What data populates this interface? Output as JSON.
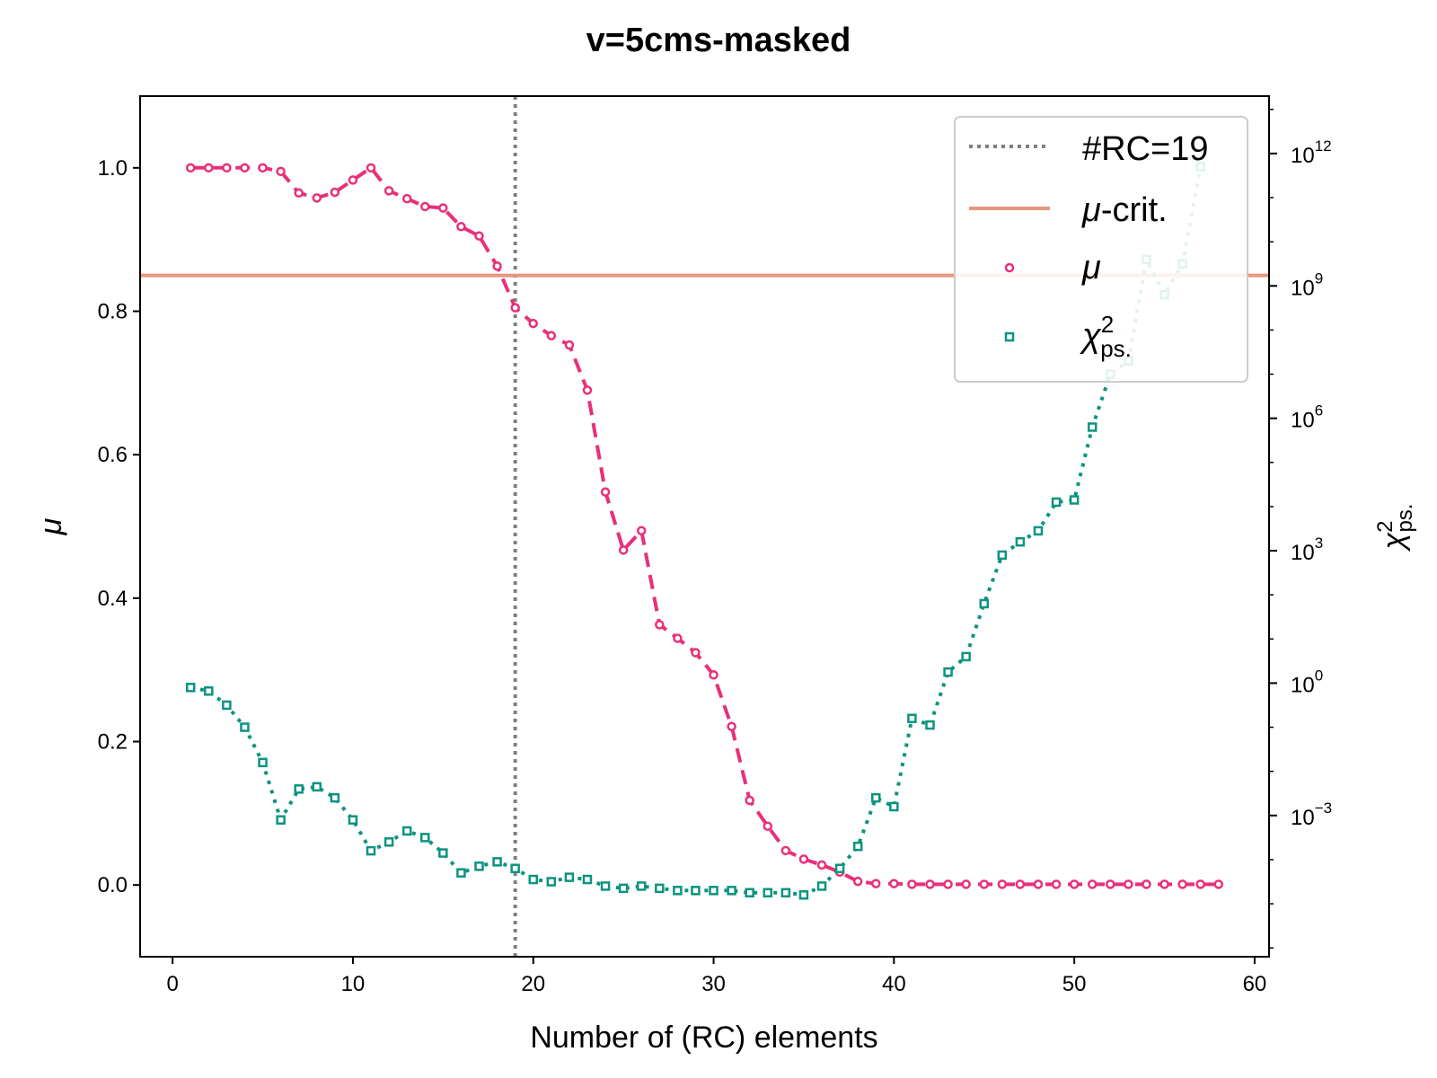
{
  "chart_data": {
    "type": "line",
    "title": "v=5cms-masked",
    "xlabel": "Number of (RC) elements",
    "ylabel": "μ",
    "y2label": "χ²ps.",
    "xlim": [
      -1.8,
      60.8
    ],
    "ylim": [
      -0.1,
      1.1
    ],
    "y2_scale": "log",
    "y2_lim_log10": [
      -6.2,
      13.3
    ],
    "x_ticks": [
      0,
      10,
      20,
      30,
      40,
      50,
      60
    ],
    "y_ticks": [
      0.0,
      0.2,
      0.4,
      0.6,
      0.8,
      1.0
    ],
    "y2_ticks_log10": [
      -3,
      0,
      3,
      6,
      9,
      12
    ],
    "grid": false,
    "legend_position": "top-right",
    "legend": [
      {
        "label": "#RC=19",
        "style": "dotted-line",
        "color": "#7f7f7f"
      },
      {
        "label": "μ-crit.",
        "style": "solid-line",
        "color": "#e8967f"
      },
      {
        "label": "μ",
        "style": "circle-marker",
        "color": "#e8307a"
      },
      {
        "label": "χ²ps.",
        "style": "square-marker",
        "color": "#0d9480"
      }
    ],
    "vertical_line": {
      "x": 19,
      "label": "#RC=19"
    },
    "horizontal_line": {
      "y": 0.85,
      "label": "μ-crit."
    },
    "series": [
      {
        "name": "μ",
        "axis": "left",
        "color": "#e8307a",
        "x": [
          1,
          2,
          3,
          4,
          5,
          6,
          7,
          8,
          9,
          10,
          11,
          12,
          13,
          14,
          15,
          16,
          17,
          18,
          19,
          20,
          21,
          22,
          23,
          24,
          25,
          26,
          27,
          28,
          29,
          30,
          31,
          32,
          33,
          34,
          35,
          36,
          37,
          38,
          39,
          40,
          41,
          42,
          43,
          44,
          45,
          46,
          47,
          48,
          49,
          50,
          51,
          52,
          53,
          54,
          55,
          56,
          57,
          58
        ],
        "y": [
          1.0,
          1.0,
          1.0,
          1.0,
          1.0,
          0.995,
          0.965,
          0.958,
          0.966,
          0.983,
          1.0,
          0.968,
          0.957,
          0.946,
          0.944,
          0.918,
          0.905,
          0.863,
          0.805,
          0.783,
          0.766,
          0.753,
          0.69,
          0.548,
          0.467,
          0.494,
          0.363,
          0.344,
          0.324,
          0.293,
          0.221,
          0.118,
          0.082,
          0.048,
          0.036,
          0.028,
          0.018,
          0.005,
          0.002,
          0.002,
          0.001,
          0.001,
          0.001,
          0.001,
          0.001,
          0.001,
          0.001,
          0.001,
          0.001,
          0.001,
          0.001,
          0.001,
          0.001,
          0.001,
          0.001,
          0.001,
          0.001,
          0.001
        ]
      },
      {
        "name": "χ²ps.",
        "axis": "right",
        "color": "#0d9480",
        "x": [
          1,
          2,
          3,
          4,
          5,
          6,
          7,
          8,
          9,
          10,
          11,
          12,
          13,
          14,
          15,
          16,
          17,
          18,
          19,
          20,
          21,
          22,
          23,
          24,
          25,
          26,
          27,
          28,
          29,
          30,
          31,
          32,
          33,
          34,
          35,
          36,
          37,
          38,
          39,
          40,
          41,
          42,
          43,
          44,
          45,
          46,
          47,
          48,
          49,
          50,
          51,
          52,
          53,
          54,
          55,
          56,
          57
        ],
        "y_log10": [
          -0.1,
          -0.18,
          -0.5,
          -1.0,
          -1.8,
          -3.1,
          -2.4,
          -2.35,
          -2.6,
          -3.1,
          -3.8,
          -3.6,
          -3.35,
          -3.5,
          -3.85,
          -4.3,
          -4.15,
          -4.05,
          -4.2,
          -4.45,
          -4.5,
          -4.4,
          -4.45,
          -4.6,
          -4.65,
          -4.6,
          -4.65,
          -4.7,
          -4.7,
          -4.7,
          -4.7,
          -4.75,
          -4.75,
          -4.75,
          -4.8,
          -4.6,
          -4.2,
          -3.7,
          -2.6,
          -2.8,
          -0.8,
          -0.95,
          0.25,
          0.6,
          1.8,
          2.9,
          3.2,
          3.45,
          4.1,
          4.15,
          5.8,
          7.0,
          7.3,
          9.6,
          8.8,
          9.5,
          11.7
        ]
      }
    ]
  }
}
